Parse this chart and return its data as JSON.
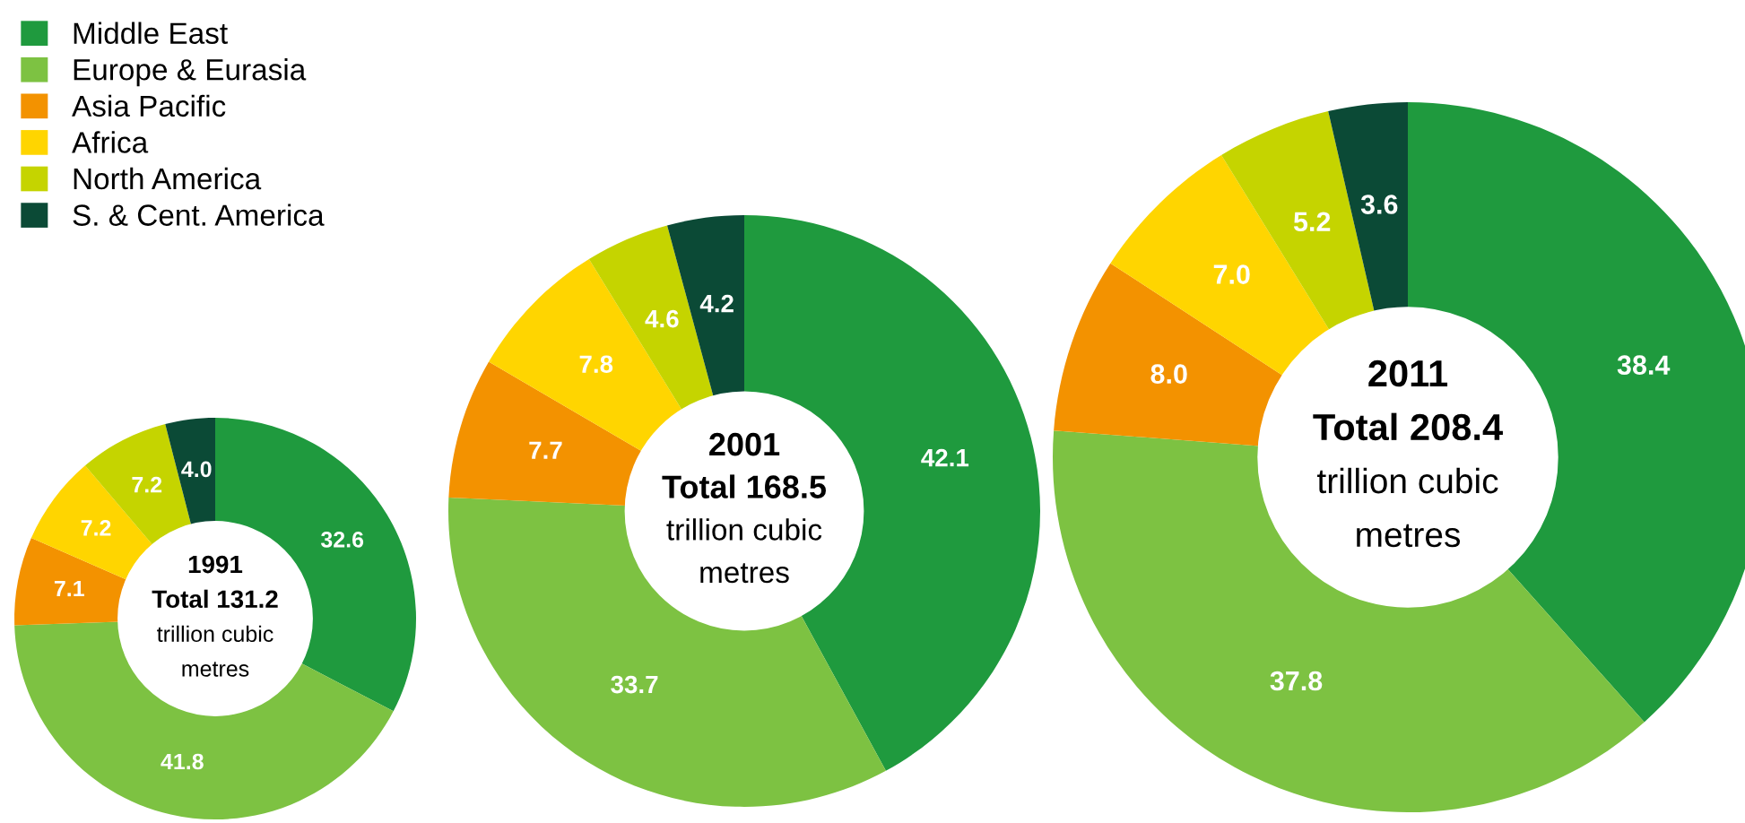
{
  "chart_data": [
    {
      "type": "donut",
      "categories": [
        "Middle East",
        "Europe & Eurasia",
        "Asia Pacific",
        "Africa",
        "North America",
        "S. & Cent. America"
      ],
      "values": [
        32.6,
        41.8,
        7.1,
        7.2,
        7.2,
        4.0
      ],
      "value_labels": [
        "32.6",
        "41.8",
        "7.1",
        "7.2",
        "7.2",
        "4.0"
      ],
      "colors": [
        "#1f9a3e",
        "#7dc242",
        "#f39200",
        "#ffd500",
        "#c5d400",
        "#0b4a36"
      ],
      "legend": "top left",
      "annotations": [
        "1991",
        "Total 131.2",
        "trillion cubic",
        "metres"
      ]
    },
    {
      "type": "donut",
      "categories": [
        null,
        null,
        null,
        null,
        null,
        null
      ],
      "values": [
        42.1,
        33.7,
        7.7,
        7.8,
        4.6,
        4.2
      ],
      "value_labels": [
        "42.1",
        "33.7",
        "7.7",
        "7.8",
        "4.6",
        "4.2"
      ],
      "colors": [
        "#1f9a3e",
        "#7dc242",
        "#f39200",
        "#ffd500",
        "#c5d400",
        "#0b4a36"
      ],
      "annotations": [
        "2001",
        "Total 168.5",
        "trillion cubic",
        "metres"
      ]
    },
    {
      "type": "donut",
      "categories": [
        null,
        null,
        null,
        null,
        null,
        null
      ],
      "values": [
        38.4,
        37.8,
        8.0,
        7.0,
        5.2,
        3.6
      ],
      "value_labels": [
        "38.4",
        "37.8",
        "8.0",
        "7.0",
        "5.2",
        "3.6"
      ],
      "colors": [
        "#1f9a3e",
        "#7dc242",
        "#f39200",
        "#ffd500",
        "#c5d400",
        "#0b4a36"
      ],
      "annotations": [
        "2011",
        "Total 208.4",
        "trillion cubic",
        "metres"
      ]
    }
  ]
}
